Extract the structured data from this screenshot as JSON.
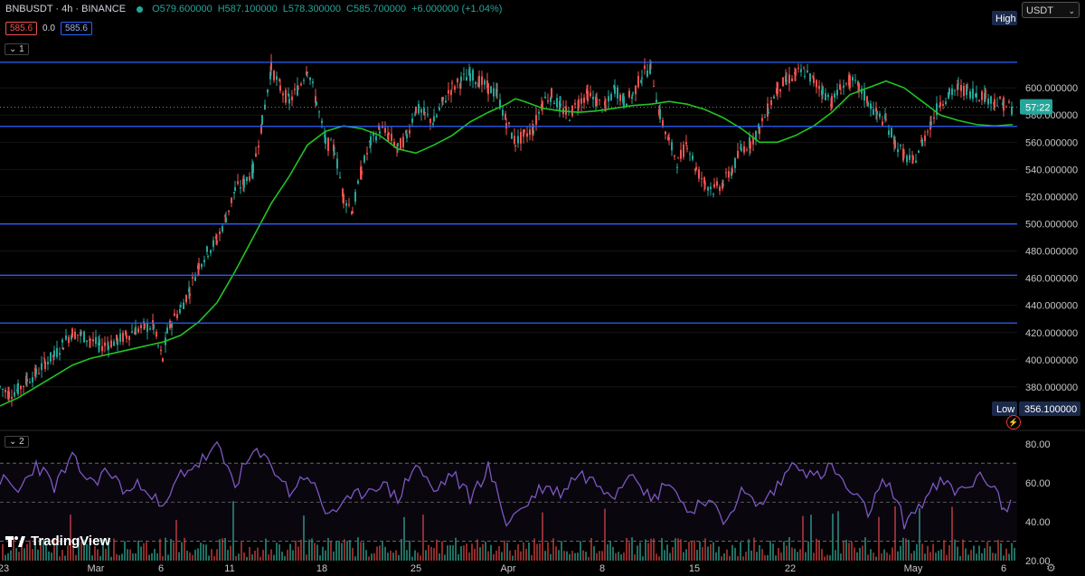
{
  "header": {
    "symbol": "BNBUSDT · 4h · BINANCE",
    "open": "O579.600000",
    "high": "H587.100000",
    "low": "L578.300000",
    "close": "C585.700000",
    "change": "+6.000000 (+1.04%)"
  },
  "order_pills": {
    "sell": "585.6",
    "spread": "0.0",
    "buy": "585.6"
  },
  "pane_tags": {
    "main": "1",
    "indicator": "2"
  },
  "unit_selector": {
    "label": "USDT",
    "chevron": "⌄"
  },
  "watermark": "TradingView",
  "colors": {
    "up": "#26a69a",
    "down": "#ef5350",
    "ma": "#22c322",
    "rsi": "#7e57c2",
    "hline": "#2962ff",
    "bg": "#000000"
  },
  "chart_data": {
    "type": "candlestick",
    "x_tick_labels": [
      "23",
      "Mar",
      "6",
      "11",
      "18",
      "25",
      "Apr",
      "8",
      "15",
      "22",
      "May",
      "6"
    ],
    "price_axis": {
      "ylim": [
        352,
        650
      ],
      "ticks": [
        "380.000000",
        "400.000000",
        "420.000000",
        "440.000000",
        "460.000000",
        "480.000000",
        "500.000000",
        "520.000000",
        "540.000000",
        "560.000000",
        "580.000000",
        "600.000000"
      ]
    },
    "high_marker": {
      "label": "High"
    },
    "low_marker": {
      "label": "Low",
      "value": "356.100000"
    },
    "current_price_label": "57:22",
    "horizontal_levels": [
      "618.837183",
      "571.667132",
      "499.863832",
      "462.127792",
      "427.012310"
    ],
    "price_series": {
      "x": [
        0,
        10,
        20,
        30,
        40,
        50,
        60,
        70,
        80,
        90,
        100,
        110,
        120,
        130,
        140,
        150,
        160,
        170,
        175,
        180,
        185,
        190,
        200,
        210,
        220,
        230,
        240,
        250,
        260,
        270,
        280,
        290,
        300,
        310,
        320,
        330,
        340,
        350,
        360,
        370,
        380,
        390,
        400,
        410,
        420,
        430,
        440,
        450,
        460,
        470,
        480,
        490,
        500,
        510,
        520,
        530,
        540,
        550,
        560,
        570,
        580,
        590,
        600,
        610,
        620,
        630,
        640,
        650,
        660,
        670,
        680,
        690,
        700,
        710,
        720,
        730,
        740,
        750,
        760,
        770,
        780,
        790,
        800,
        810,
        820,
        830,
        840,
        850,
        860,
        870,
        880,
        890,
        900,
        910,
        920,
        930,
        940,
        950,
        960,
        970,
        980,
        990,
        1000,
        1010,
        1020,
        1030,
        1040,
        1050,
        1060,
        1070,
        1080,
        1090,
        1100,
        1110,
        1120
      ],
      "y": [
        380,
        375,
        378,
        385,
        390,
        398,
        403,
        412,
        420,
        418,
        415,
        410,
        412,
        414,
        418,
        422,
        424,
        425,
        410,
        400,
        420,
        428,
        438,
        452,
        470,
        480,
        488,
        505,
        525,
        530,
        540,
        575,
        615,
        600,
        590,
        600,
        615,
        590,
        560,
        555,
        520,
        510,
        540,
        560,
        570,
        565,
        555,
        565,
        585,
        580,
        575,
        590,
        600,
        605,
        610,
        605,
        600,
        595,
        575,
        560,
        565,
        570,
        590,
        595,
        585,
        580,
        590,
        595,
        590,
        585,
        600,
        590,
        595,
        610,
        615,
        580,
        560,
        545,
        560,
        540,
        530,
        525,
        530,
        540,
        555,
        560,
        570,
        585,
        600,
        605,
        610,
        612,
        605,
        598,
        590,
        600,
        605,
        600,
        590,
        580,
        575,
        560,
        550,
        545,
        560,
        575,
        590,
        595,
        600,
        598,
        596,
        594,
        590,
        588,
        585
      ]
    },
    "ma_series": {
      "x": [
        0,
        20,
        40,
        60,
        80,
        100,
        120,
        140,
        160,
        180,
        200,
        220,
        240,
        260,
        280,
        300,
        320,
        340,
        360,
        380,
        400,
        420,
        440,
        460,
        480,
        500,
        520,
        540,
        560,
        570,
        580,
        600,
        620,
        640,
        660,
        680,
        700,
        720,
        740,
        760,
        780,
        800,
        820,
        840,
        860,
        880,
        900,
        920,
        940,
        960,
        980,
        1000,
        1020,
        1040,
        1060,
        1080,
        1100,
        1120
      ],
      "y": [
        366,
        372,
        380,
        388,
        396,
        401,
        404,
        407,
        410,
        413,
        418,
        428,
        442,
        465,
        490,
        515,
        535,
        558,
        568,
        572,
        570,
        565,
        555,
        552,
        558,
        565,
        575,
        582,
        588,
        592,
        590,
        585,
        583,
        582,
        583,
        585,
        587,
        588,
        590,
        588,
        584,
        578,
        570,
        560,
        560,
        565,
        572,
        582,
        595,
        600,
        605,
        600,
        590,
        580,
        576,
        573,
        572,
        573
      ]
    },
    "rsi_pane": {
      "ylim": [
        20,
        85
      ],
      "ticks": [
        "80.00",
        "60.00",
        "40.00",
        "20.00"
      ],
      "bands": [
        70,
        30
      ],
      "x": [
        0,
        20,
        40,
        60,
        80,
        100,
        120,
        140,
        160,
        180,
        200,
        220,
        240,
        260,
        280,
        300,
        320,
        340,
        360,
        380,
        400,
        420,
        440,
        460,
        480,
        500,
        520,
        540,
        560,
        580,
        600,
        620,
        640,
        660,
        680,
        700,
        720,
        740,
        760,
        780,
        800,
        820,
        840,
        860,
        880,
        900,
        920,
        940,
        960,
        980,
        1000,
        1020,
        1040,
        1060,
        1080,
        1100,
        1110,
        1120
      ],
      "y": [
        62,
        55,
        70,
        58,
        72,
        60,
        66,
        55,
        60,
        45,
        65,
        70,
        78,
        60,
        75,
        70,
        55,
        65,
        45,
        48,
        55,
        60,
        52,
        70,
        55,
        65,
        52,
        68,
        40,
        48,
        58,
        55,
        65,
        60,
        55,
        68,
        50,
        62,
        45,
        52,
        40,
        55,
        48,
        58,
        72,
        62,
        68,
        55,
        45,
        62,
        40,
        50,
        60,
        55,
        62,
        60,
        45,
        50
      ]
    }
  }
}
